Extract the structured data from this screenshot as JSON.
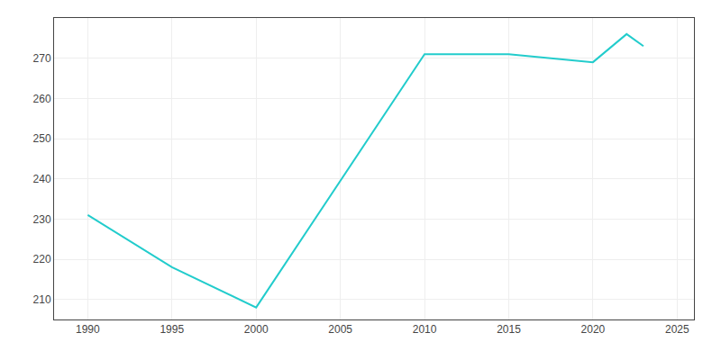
{
  "chart_data": {
    "type": "line",
    "x": [
      1990,
      1995,
      2000,
      2010,
      2015,
      2020,
      2022,
      2023
    ],
    "values": [
      231,
      218,
      208,
      271,
      271,
      269,
      276,
      273
    ],
    "color": "#22CCCC",
    "xlim": [
      1988,
      2026
    ],
    "xticks": [
      1990,
      1995,
      2000,
      2005,
      2010,
      2015,
      2020,
      2025
    ],
    "ylim": [
      205,
      280
    ],
    "yticks": [
      210,
      220,
      230,
      240,
      250,
      260,
      270
    ],
    "grid": true
  }
}
